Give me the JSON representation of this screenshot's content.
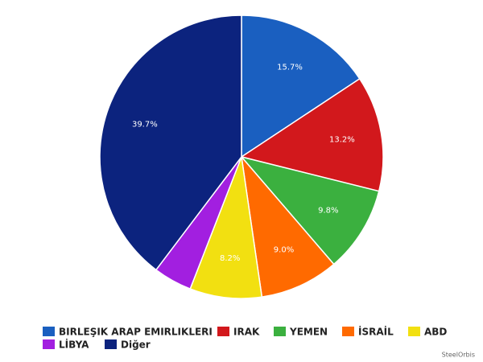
{
  "chart_data": {
    "type": "pie",
    "categories": [
      "BIRLEŞIK ARAP EMIRLIKLERI",
      "IRAK",
      "YEMEN",
      "İSRAİL",
      "ABD",
      "LİBYA",
      "Diğer"
    ],
    "values": [
      15.7,
      13.2,
      9.8,
      9.0,
      8.2,
      4.4,
      39.7
    ],
    "value_labels": [
      "15.7%",
      "13.2%",
      "9.8%",
      "9.0%",
      "8.2%",
      null,
      "39.7%"
    ],
    "colors": [
      "#1a5fc0",
      "#d2181c",
      "#3bb03f",
      "#ff6a00",
      "#f2e011",
      "#a21fe0",
      "#0c237e"
    ],
    "watermark": "SteelOrbis"
  }
}
